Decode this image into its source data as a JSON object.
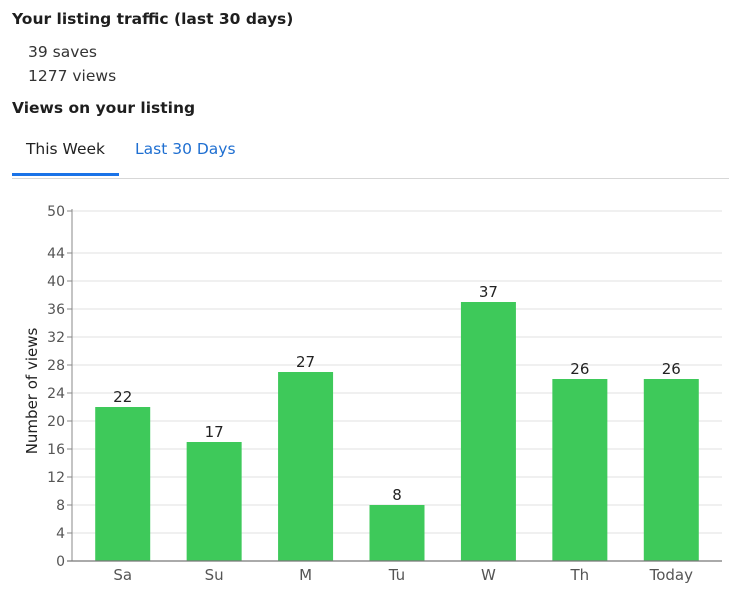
{
  "header": {
    "title": "Your listing traffic (last 30 days)",
    "saves": "39 saves",
    "views": "1277 views",
    "views_heading": "Views on your listing"
  },
  "tabs": [
    {
      "label": "This Week",
      "active": true
    },
    {
      "label": "Last 30 Days",
      "active": false
    }
  ],
  "colors": {
    "bar": "#3ec95a",
    "tab_active_underline": "#1a73e8",
    "tab_link": "#1f6fd1",
    "grid": "#e2e2e2"
  },
  "chart_data": {
    "type": "bar",
    "categories": [
      "Sa",
      "Su",
      "M",
      "Tu",
      "W",
      "Th",
      "Today"
    ],
    "values": [
      22,
      17,
      27,
      8,
      37,
      26,
      26
    ],
    "ylabel": "Number of views",
    "xlabel": "",
    "ylim": [
      0,
      50
    ],
    "yticks": [
      0,
      4,
      8,
      12,
      16,
      20,
      24,
      28,
      32,
      36,
      40,
      44,
      50
    ],
    "grid": true,
    "data_labels": true
  }
}
